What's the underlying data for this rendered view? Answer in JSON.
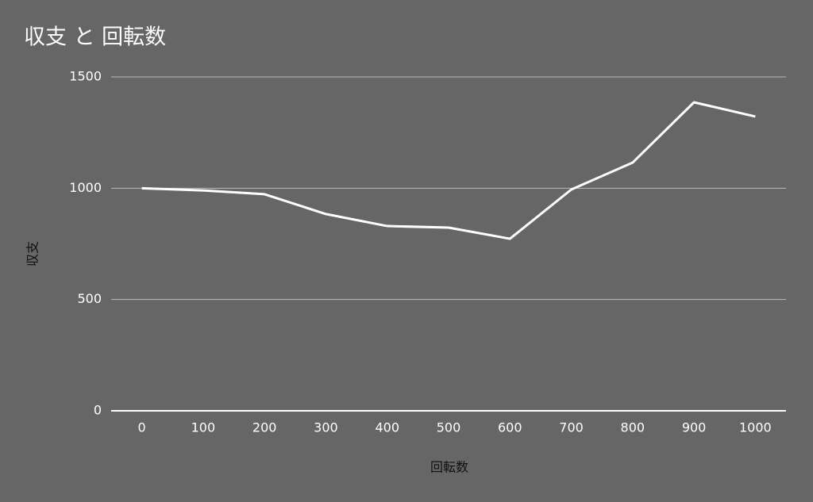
{
  "chart_data": {
    "type": "line",
    "title": "収支 と 回転数",
    "x_label": "回転数",
    "y_label": "収支",
    "categories": [
      "0",
      "100",
      "200",
      "300",
      "400",
      "500",
      "600",
      "700",
      "800",
      "900",
      "1000"
    ],
    "values": [
      1000,
      990,
      973,
      884,
      830,
      823,
      773,
      994,
      1115,
      1386,
      1322
    ],
    "color": "#ffffff",
    "ylim": [
      0,
      1500
    ],
    "yticks": [
      0,
      500,
      1000,
      1500
    ],
    "grid": true
  }
}
